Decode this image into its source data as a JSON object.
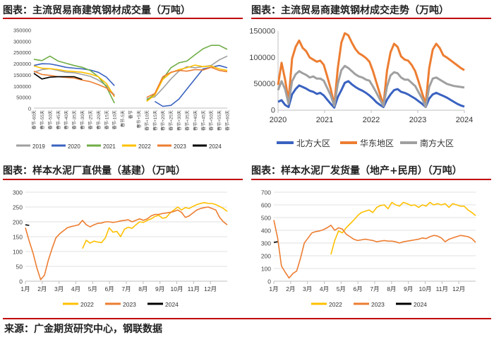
{
  "panels": [
    {
      "title": "图表：主流贸易商建筑钢材成交量（万吨）"
    },
    {
      "title": "图表：主流贸易商建筑钢材成交走势（万吨）"
    },
    {
      "title": "图表：样本水泥厂直供量（基建）（万吨）"
    },
    {
      "title": "图表：样本水泥厂发货量（地产+民用）（万吨）"
    }
  ],
  "footer": "来源：广金期货研究中心，钢联数据",
  "colors": {
    "c2019": "#a0a0a0",
    "c2020": "#3a62c0",
    "c2021": "#70ad47",
    "c2022": "#ffc000",
    "c2023": "#ed7d31",
    "c2024": "#000000",
    "red": "#c00000"
  },
  "chart_data": [
    {
      "type": "line",
      "title": "主流贸易商建筑钢材成交量（万吨）",
      "ylim": [
        0,
        350000
      ],
      "yticks": [
        "0",
        "50000",
        "100000",
        "150000",
        "200000",
        "250000",
        "300000",
        "350000"
      ],
      "categories": [
        "春节-60天",
        "春节-55天",
        "春节-50天",
        "春节-45天",
        "春节-40天",
        "春节-35天",
        "春节-30天",
        "春节-25天",
        "春节-20天",
        "春节-15天",
        "春节-10天",
        "春节-5天",
        "春节",
        "春节+5天",
        "春节+10天",
        "春节+15天",
        "春节+20天",
        "春节+25天",
        "春节+30天",
        "春节+35天",
        "春节+40天",
        "春节+45天",
        "春节+50天",
        "春节+55天",
        "春节+60天"
      ],
      "series": [
        {
          "name": "2019",
          "color": "#a0a0a0",
          "values": [
            160000,
            172000,
            176000,
            168000,
            160000,
            158000,
            150000,
            142000,
            125000,
            100000,
            58000,
            null,
            null,
            null,
            42000,
            50000,
            88000,
            130000,
            165000,
            185000,
            180000,
            185000,
            190000,
            215000,
            232000
          ]
        },
        {
          "name": "2020",
          "color": "#3a62c0",
          "values": [
            190000,
            198000,
            197000,
            190000,
            182000,
            178000,
            175000,
            170000,
            160000,
            138000,
            100000,
            null,
            null,
            null,
            null,
            30000,
            8000,
            12000,
            40000,
            85000,
            130000,
            175000,
            182000,
            190000,
            180000
          ]
        },
        {
          "name": "2021",
          "color": "#70ad47",
          "values": [
            218000,
            212000,
            232000,
            210000,
            200000,
            190000,
            182000,
            168000,
            140000,
            95000,
            22000,
            null,
            null,
            null,
            35000,
            62000,
            130000,
            180000,
            202000,
            210000,
            238000,
            265000,
            280000,
            280000,
            262000
          ]
        },
        {
          "name": "2022",
          "color": "#ffc000",
          "values": [
            188000,
            178000,
            176000,
            172000,
            166000,
            163000,
            160000,
            152000,
            140000,
            110000,
            50000,
            null,
            null,
            null,
            30000,
            58000,
            128000,
            158000,
            172000,
            180000,
            192000,
            185000,
            188000,
            175000,
            168000
          ]
        },
        {
          "name": "2023",
          "color": "#ed7d31",
          "values": [
            165000,
            150000,
            146000,
            140000,
            137000,
            134000,
            125000,
            118000,
            105000,
            90000,
            55000,
            null,
            null,
            null,
            48000,
            65000,
            140000,
            160000,
            168000,
            165000,
            172000,
            170000,
            182000,
            168000,
            162000
          ]
        },
        {
          "name": "2024",
          "color": "#000000",
          "values": [
            155000,
            130000,
            138000,
            140000,
            140000,
            140000,
            128000,
            null,
            null,
            null,
            null,
            null,
            null,
            null,
            null,
            null,
            null,
            null,
            null,
            null,
            null,
            null,
            null,
            null,
            null
          ]
        }
      ]
    },
    {
      "type": "line",
      "title": "主流贸易商建筑钢材成交走势（万吨）",
      "ylim": [
        0,
        150000
      ],
      "yticks": [
        "0",
        "50000",
        "100000",
        "150000"
      ],
      "xticks": [
        "2020",
        "2021",
        "2022",
        "2023",
        "2024"
      ],
      "series": [
        {
          "name": "北方大区",
          "color": "#3a62c0",
          "values": [
            16000,
            19000,
            10000,
            6000,
            30000,
            40000,
            47000,
            44000,
            41000,
            37000,
            35000,
            31000,
            33000,
            28000,
            20000,
            12000,
            5000,
            25000,
            38000,
            52000,
            55000,
            49000,
            44000,
            40000,
            37000,
            33000,
            28000,
            22000,
            15000,
            10000,
            6000,
            20000,
            30000,
            38000,
            40000,
            35000,
            33000,
            30000,
            26000,
            22000,
            17000,
            12000,
            6000,
            22000,
            30000,
            33000,
            30000,
            27000,
            24000,
            20000,
            16000,
            12000,
            9000,
            7000
          ]
        },
        {
          "name": "华东地区",
          "color": "#ed7d31",
          "values": [
            48000,
            90000,
            58000,
            18000,
            98000,
            120000,
            132000,
            118000,
            112000,
            100000,
            96000,
            92000,
            94000,
            86000,
            64000,
            40000,
            10000,
            80000,
            128000,
            146000,
            142000,
            128000,
            116000,
            108000,
            104000,
            99000,
            92000,
            74000,
            52000,
            30000,
            10000,
            75000,
            110000,
            126000,
            120000,
            102000,
            96000,
            94000,
            86000,
            74000,
            54000,
            32000,
            12000,
            80000,
            115000,
            126000,
            118000,
            104000,
            100000,
            95000,
            90000,
            85000,
            80000,
            76000
          ]
        },
        {
          "name": "南方大区",
          "color": "#a0a0a0",
          "values": [
            38000,
            55000,
            40000,
            12000,
            55000,
            68000,
            74000,
            70000,
            67000,
            62000,
            64000,
            60000,
            60000,
            56000,
            42000,
            28000,
            8000,
            50000,
            76000,
            84000,
            80000,
            74000,
            68000,
            64000,
            62000,
            58000,
            56000,
            45000,
            33000,
            20000,
            8000,
            45000,
            66000,
            72000,
            70000,
            62000,
            58000,
            58000,
            52000,
            46000,
            34000,
            22000,
            6000,
            44000,
            60000,
            62000,
            58000,
            54000,
            50000,
            48000,
            46000,
            45000,
            44000,
            43000
          ]
        }
      ]
    },
    {
      "type": "line",
      "title": "样本水泥厂直供量（基建）（万吨）",
      "ylim": [
        0,
        300
      ],
      "yticks": [
        "0",
        "50",
        "100",
        "150",
        "200",
        "250",
        "300"
      ],
      "xticks": [
        "1月",
        "2月",
        "3月",
        "4月",
        "5月",
        "6月",
        "7月",
        "8月",
        "9月",
        "10月",
        "11月",
        "12月"
      ],
      "series": [
        {
          "name": "2022",
          "color": "#ffc000",
          "values": [
            null,
            null,
            null,
            null,
            null,
            null,
            null,
            null,
            null,
            null,
            null,
            null,
            null,
            null,
            null,
            110,
            138,
            128,
            135,
            132,
            130,
            146,
            180,
            165,
            168,
            150,
            175,
            182,
            178,
            190,
            200,
            198,
            205,
            210,
            218,
            222,
            212,
            215,
            230,
            240,
            250,
            240,
            248,
            245,
            252,
            258,
            262,
            265,
            262,
            262,
            258,
            252,
            245,
            235
          ]
        },
        {
          "name": "2023",
          "color": "#ed7d31",
          "values": [
            180,
            135,
            95,
            45,
            5,
            20,
            70,
            110,
            146,
            160,
            170,
            180,
            184,
            187,
            190,
            205,
            190,
            183,
            190,
            195,
            196,
            200,
            200,
            198,
            200,
            203,
            205,
            207,
            200,
            205,
            210,
            205,
            210,
            220,
            225,
            225,
            228,
            230,
            232,
            235,
            240,
            232,
            215,
            220,
            230,
            240,
            245,
            248,
            250,
            245,
            240,
            215,
            200,
            190
          ]
        },
        {
          "name": "2024",
          "color": "#000000",
          "values": [
            190,
            188,
            null,
            null,
            null,
            null,
            null,
            null,
            null,
            null,
            null,
            null,
            null,
            null,
            null,
            null,
            null,
            null,
            null,
            null,
            null,
            null,
            null,
            null,
            null,
            null,
            null,
            null,
            null,
            null,
            null,
            null,
            null,
            null,
            null,
            null,
            null,
            null,
            null,
            null,
            null,
            null,
            null,
            null,
            null,
            null,
            null,
            null,
            null,
            null,
            null,
            null,
            null,
            null
          ]
        }
      ]
    },
    {
      "type": "line",
      "title": "样本水泥厂发货量（地产+民用）（万吨）",
      "ylim": [
        0,
        700
      ],
      "yticks": [
        "0",
        "100",
        "200",
        "300",
        "400",
        "500",
        "600",
        "700"
      ],
      "xticks": [
        "1月",
        "2月",
        "3月",
        "4月",
        "5月",
        "6月",
        "7月",
        "8月",
        "9月",
        "10月",
        "11月",
        "12月"
      ],
      "series": [
        {
          "name": "2022",
          "color": "#ffc000",
          "values": [
            null,
            null,
            null,
            null,
            null,
            null,
            null,
            null,
            null,
            null,
            null,
            null,
            null,
            null,
            null,
            210,
            320,
            395,
            380,
            420,
            450,
            480,
            515,
            540,
            550,
            560,
            540,
            580,
            595,
            600,
            570,
            620,
            600,
            590,
            620,
            610,
            595,
            600,
            580,
            600,
            590,
            620,
            600,
            610,
            600,
            610,
            580,
            610,
            600,
            590,
            590,
            560,
            540,
            515
          ]
        },
        {
          "name": "2023",
          "color": "#ed7d31",
          "values": [
            480,
            340,
            120,
            70,
            25,
            60,
            80,
            180,
            300,
            340,
            380,
            390,
            395,
            405,
            420,
            440,
            400,
            420,
            410,
            370,
            350,
            330,
            320,
            325,
            330,
            325,
            320,
            310,
            315,
            320,
            315,
            315,
            310,
            300,
            310,
            315,
            320,
            325,
            330,
            340,
            335,
            350,
            360,
            355,
            340,
            310,
            330,
            340,
            350,
            360,
            355,
            350,
            335,
            305
          ]
        },
        {
          "name": "2024",
          "color": "#000000",
          "values": [
            305,
            310,
            null,
            null,
            null,
            null,
            null,
            null,
            null,
            null,
            null,
            null,
            null,
            null,
            null,
            null,
            null,
            null,
            null,
            null,
            null,
            null,
            null,
            null,
            null,
            null,
            null,
            null,
            null,
            null,
            null,
            null,
            null,
            null,
            null,
            null,
            null,
            null,
            null,
            null,
            null,
            null,
            null,
            null,
            null,
            null,
            null,
            null,
            null,
            null,
            null,
            null,
            null,
            null
          ]
        }
      ]
    }
  ]
}
